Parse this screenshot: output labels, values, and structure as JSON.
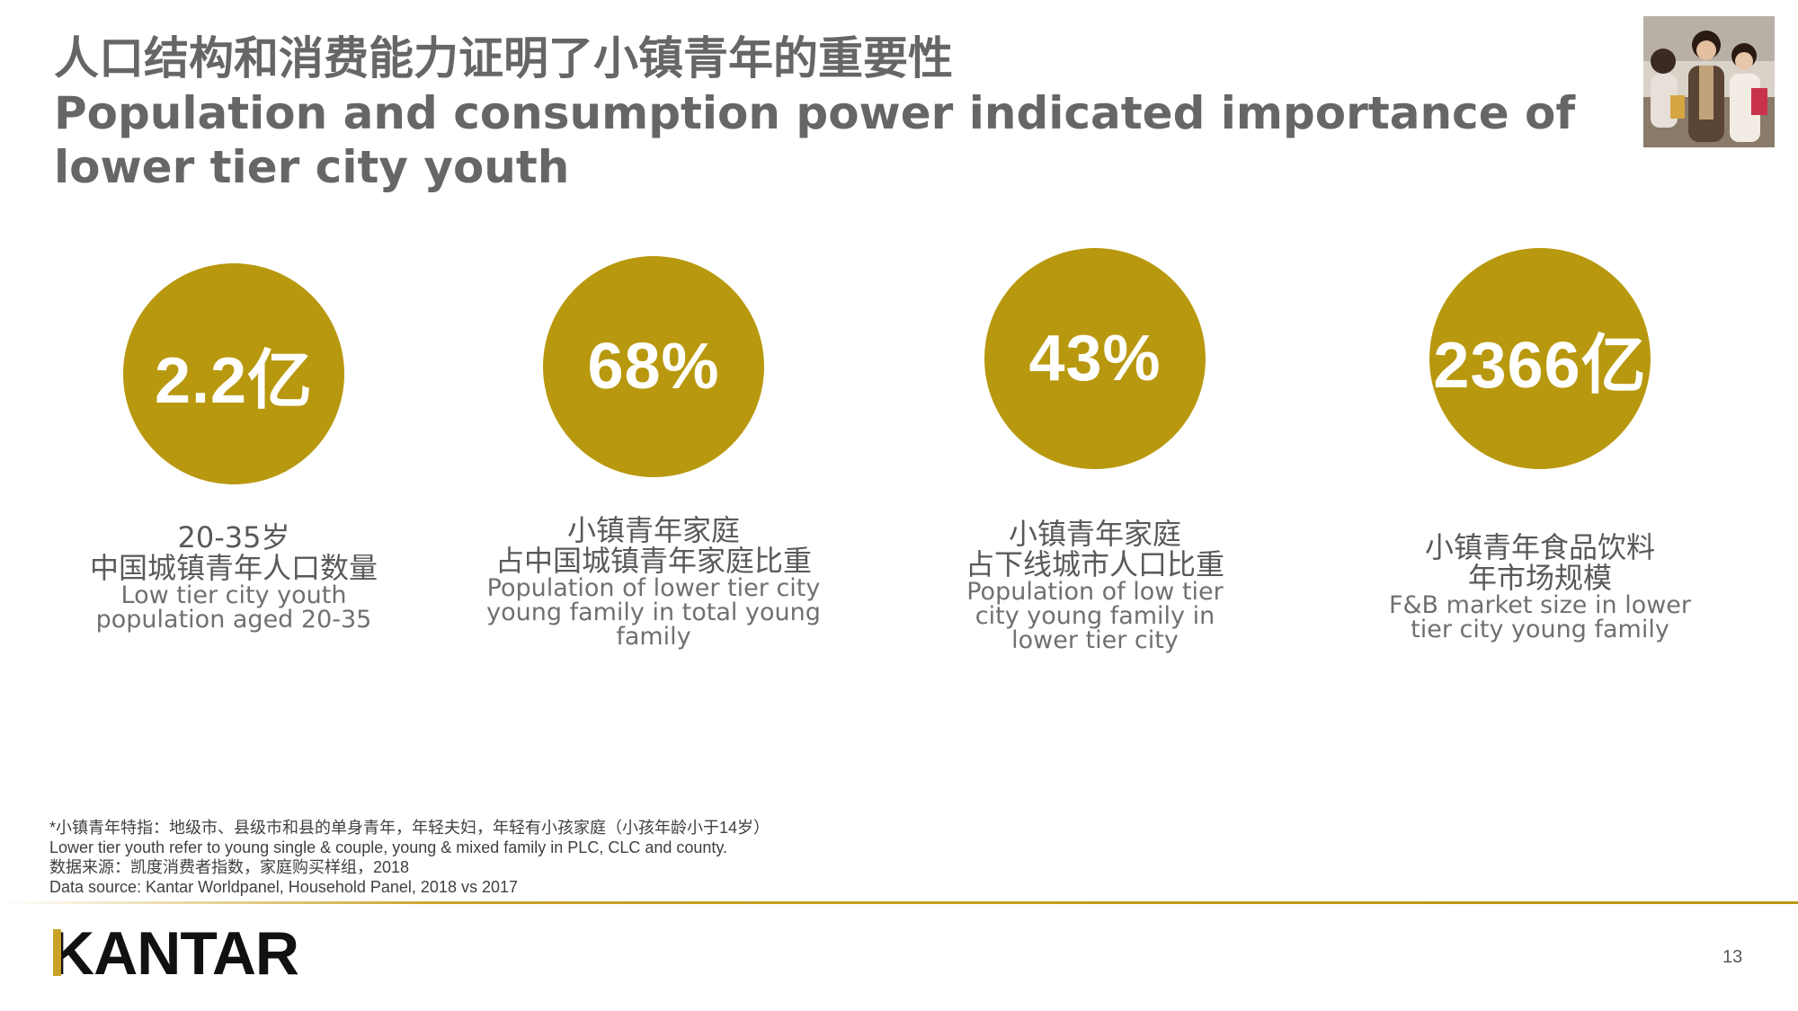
{
  "title": {
    "cn": "人口结构和消费能力证明了小镇青年的重要性",
    "en": "Population and consumption power indicated importance of lower tier city youth"
  },
  "photo": {
    "icon": "people-shopping-photo"
  },
  "stats": [
    {
      "value": "2.2亿",
      "cn": [
        "20-35岁",
        "中国城镇青年人口数量"
      ],
      "en": [
        "Low tier city youth",
        "population aged 20-35"
      ]
    },
    {
      "value": "68%",
      "cn": [
        "小镇青年家庭",
        "占中国城镇青年家庭比重"
      ],
      "en": [
        "Population of lower tier city",
        "young family in total young",
        "family"
      ]
    },
    {
      "value": "43%",
      "cn": [
        "小镇青年家庭",
        "占下线城市人口比重"
      ],
      "en": [
        "Population of low tier",
        "city young family in",
        "lower tier city"
      ]
    },
    {
      "value": "2366亿",
      "cn": [
        "小镇青年食品饮料",
        "年市场规模"
      ],
      "en": [
        "F&B market size in lower",
        "tier city young family"
      ]
    }
  ],
  "footnote": {
    "line1": "*小镇青年特指：地级市、县级市和县的单身青年，年轻夫妇，年轻有小孩家庭（小孩年龄小于14岁）",
    "line2": "Lower tier youth refer to young single & couple, young & mixed family in PLC, CLC and county.",
    "line3": "数据来源：凯度消费者指数，家庭购买样组，2018",
    "line4": "Data source: Kantar Worldpanel, Household Panel, 2018 vs 2017"
  },
  "logo": "KANTAR",
  "page_number": "13",
  "colors": {
    "accent": "#b8980e",
    "title": "#666666",
    "text": "#595959"
  }
}
